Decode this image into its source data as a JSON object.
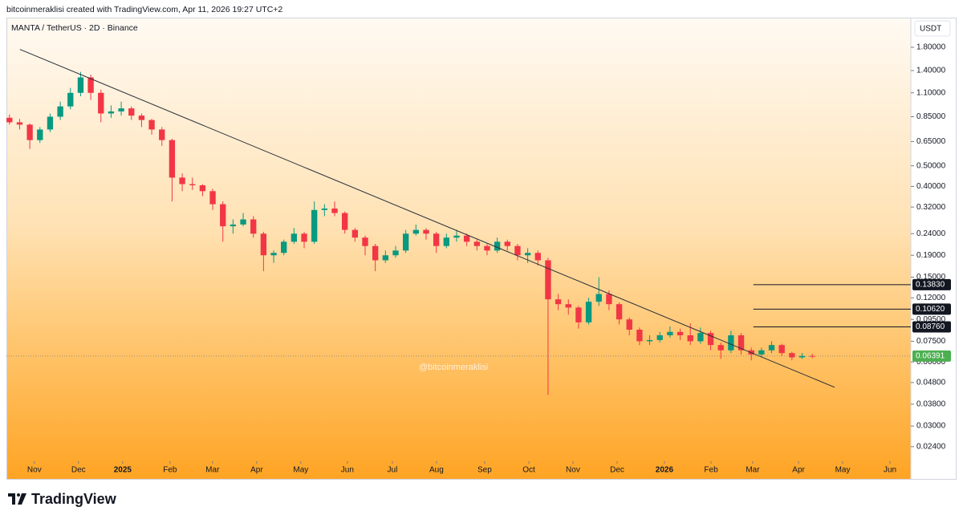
{
  "header": "bitcoinmeraklisi created with TradingView.com, Apr 11, 2026 19:27 UTC+2",
  "brand": "TradingView",
  "chart_data": {
    "type": "candlestick",
    "title": "MANTA / TetherUS · 2D · Binance",
    "currency": "USDT",
    "watermark": "@bitcoinmeraklisi",
    "log_scale": true,
    "up_color": "#089981",
    "down_color": "#f23645",
    "categories": [
      null,
      null,
      null,
      null,
      null,
      null,
      null,
      null,
      null,
      null,
      null,
      null,
      null,
      null,
      null,
      null,
      null,
      null,
      null,
      null,
      null,
      null,
      null,
      null,
      null,
      null,
      null,
      null,
      null,
      null,
      null,
      null,
      null,
      null,
      null,
      null,
      null,
      null,
      null,
      null,
      null,
      null,
      null,
      null,
      null,
      null,
      null,
      null,
      null,
      null,
      null,
      null,
      null,
      null,
      null,
      null,
      null,
      null,
      null,
      null,
      null,
      null,
      null,
      null,
      null,
      null,
      null,
      null,
      null,
      null,
      null,
      null,
      null,
      null,
      null,
      null,
      null,
      null,
      null,
      null
    ],
    "open": [
      0.84,
      0.8,
      0.78,
      0.66,
      0.74,
      0.85,
      0.95,
      1.1,
      1.3,
      1.1,
      0.88,
      0.9,
      0.93,
      0.86,
      0.82,
      0.74,
      0.66,
      0.44,
      0.41,
      0.405,
      0.38,
      0.33,
      0.26,
      0.265,
      0.28,
      0.24,
      0.19,
      0.195,
      0.22,
      0.24,
      0.22,
      0.31,
      0.315,
      0.3,
      0.25,
      0.23,
      0.21,
      0.18,
      0.19,
      0.2,
      0.24,
      0.25,
      0.24,
      0.21,
      0.23,
      0.235,
      0.22,
      0.21,
      0.2,
      0.22,
      0.21,
      0.19,
      0.195,
      0.18,
      0.118,
      0.112,
      0.108,
      0.092,
      0.115,
      0.125,
      0.112,
      0.095,
      0.085,
      0.075,
      0.076,
      0.08,
      0.083,
      0.08,
      0.075,
      0.082,
      0.072,
      0.068,
      0.08,
      0.068,
      0.065,
      0.068,
      0.072,
      0.066,
      0.063,
      0.064
    ],
    "high": [
      0.87,
      0.83,
      0.79,
      0.76,
      0.88,
      1.0,
      1.16,
      1.38,
      1.34,
      1.14,
      0.96,
      1.0,
      0.95,
      0.88,
      0.83,
      0.76,
      0.67,
      0.46,
      0.44,
      0.41,
      0.39,
      0.34,
      0.28,
      0.3,
      0.29,
      0.245,
      0.2,
      0.225,
      0.255,
      0.245,
      0.34,
      0.33,
      0.34,
      0.305,
      0.255,
      0.235,
      0.215,
      0.2,
      0.21,
      0.25,
      0.265,
      0.255,
      0.245,
      0.24,
      0.25,
      0.24,
      0.225,
      0.215,
      0.23,
      0.225,
      0.215,
      0.205,
      0.2,
      0.185,
      0.125,
      0.118,
      0.11,
      0.12,
      0.15,
      0.13,
      0.114,
      0.097,
      0.087,
      0.08,
      0.083,
      0.088,
      0.086,
      0.091,
      0.087,
      0.084,
      0.074,
      0.084,
      0.082,
      0.07,
      0.07,
      0.075,
      0.073,
      0.067,
      0.066,
      0.0655
    ],
    "low": [
      0.78,
      0.74,
      0.6,
      0.64,
      0.72,
      0.82,
      0.92,
      1.06,
      1.02,
      0.8,
      0.84,
      0.86,
      0.82,
      0.76,
      0.7,
      0.62,
      0.34,
      0.38,
      0.385,
      0.36,
      0.31,
      0.22,
      0.24,
      0.26,
      0.23,
      0.16,
      0.175,
      0.19,
      0.215,
      0.205,
      0.215,
      0.29,
      0.29,
      0.24,
      0.22,
      0.19,
      0.16,
      0.175,
      0.185,
      0.195,
      0.235,
      0.225,
      0.195,
      0.205,
      0.22,
      0.21,
      0.2,
      0.19,
      0.195,
      0.2,
      0.18,
      0.175,
      0.17,
      0.042,
      0.105,
      0.1,
      0.086,
      0.09,
      0.11,
      0.105,
      0.09,
      0.08,
      0.072,
      0.072,
      0.074,
      0.078,
      0.076,
      0.072,
      0.073,
      0.068,
      0.062,
      0.066,
      0.065,
      0.061,
      0.063,
      0.066,
      0.064,
      0.061,
      0.062,
      0.0625
    ],
    "close": [
      0.8,
      0.78,
      0.66,
      0.74,
      0.85,
      0.95,
      1.1,
      1.3,
      1.1,
      0.88,
      0.9,
      0.93,
      0.86,
      0.82,
      0.74,
      0.66,
      0.44,
      0.41,
      0.405,
      0.38,
      0.33,
      0.26,
      0.265,
      0.28,
      0.24,
      0.19,
      0.195,
      0.22,
      0.24,
      0.22,
      0.31,
      0.315,
      0.3,
      0.25,
      0.23,
      0.21,
      0.18,
      0.19,
      0.2,
      0.24,
      0.25,
      0.24,
      0.21,
      0.23,
      0.235,
      0.22,
      0.21,
      0.2,
      0.22,
      0.21,
      0.19,
      0.195,
      0.18,
      0.118,
      0.112,
      0.108,
      0.092,
      0.115,
      0.125,
      0.112,
      0.095,
      0.085,
      0.075,
      0.076,
      0.08,
      0.083,
      0.08,
      0.075,
      0.082,
      0.072,
      0.068,
      0.08,
      0.068,
      0.065,
      0.068,
      0.072,
      0.066,
      0.063,
      0.064,
      0.06391
    ],
    "xlim": [
      -0.3,
      88.7
    ],
    "xticks": [
      {
        "value": 2.45,
        "label": "Nov"
      },
      {
        "value": 6.79,
        "label": "Dec"
      },
      {
        "value": 11.14,
        "label": "2025"
      },
      {
        "value": 15.8,
        "label": "Feb"
      },
      {
        "value": 19.98,
        "label": "Mar"
      },
      {
        "value": 24.33,
        "label": "Apr"
      },
      {
        "value": 28.67,
        "label": "May"
      },
      {
        "value": 33.25,
        "label": "Jun"
      },
      {
        "value": 37.68,
        "label": "Jul"
      },
      {
        "value": 42.02,
        "label": "Aug"
      },
      {
        "value": 46.76,
        "label": "Sep"
      },
      {
        "value": 51.11,
        "label": "Oct"
      },
      {
        "value": 55.45,
        "label": "Nov"
      },
      {
        "value": 59.8,
        "label": "Dec"
      },
      {
        "value": 64.45,
        "label": "2026"
      },
      {
        "value": 69.04,
        "label": "Feb"
      },
      {
        "value": 73.14,
        "label": "Mar"
      },
      {
        "value": 77.65,
        "label": "Apr"
      },
      {
        "value": 81.99,
        "label": "May"
      },
      {
        "value": 86.65,
        "label": "Jun"
      }
    ],
    "ylim": [
      0.0205,
      2.48
    ],
    "yticks": [
      {
        "value": 1.8,
        "label": "1.80000"
      },
      {
        "value": 1.4,
        "label": "1.40000"
      },
      {
        "value": 1.1,
        "label": "1.10000"
      },
      {
        "value": 0.85,
        "label": "0.85000"
      },
      {
        "value": 0.65,
        "label": "0.65000"
      },
      {
        "value": 0.5,
        "label": "0.50000"
      },
      {
        "value": 0.4,
        "label": "0.40000"
      },
      {
        "value": 0.32,
        "label": "0.32000"
      },
      {
        "value": 0.24,
        "label": "0.24000"
      },
      {
        "value": 0.19,
        "label": "0.19000"
      },
      {
        "value": 0.15,
        "label": "0.15000"
      },
      {
        "value": 0.12,
        "label": "0.12000"
      },
      {
        "value": 0.095,
        "label": "0.09500"
      },
      {
        "value": 0.075,
        "label": "0.07500"
      },
      {
        "value": 0.06,
        "label": "0.06000"
      },
      {
        "value": 0.048,
        "label": "0.04800"
      },
      {
        "value": 0.038,
        "label": "0.03800"
      },
      {
        "value": 0.03,
        "label": "0.03000"
      },
      {
        "value": 0.024,
        "label": "0.02400"
      }
    ],
    "trendline": {
      "x": [
        1.03,
        81.2
      ],
      "y": [
        1.76,
        0.0456
      ]
    },
    "levels": [
      {
        "value": 0.1383,
        "label": "0.13830"
      },
      {
        "value": 0.1062,
        "label": "0.10620"
      },
      {
        "value": 0.0876,
        "label": "0.08760"
      }
    ],
    "levels_start": 73.2,
    "last_price": 0.06391,
    "last_price_color": "#4caf50"
  }
}
